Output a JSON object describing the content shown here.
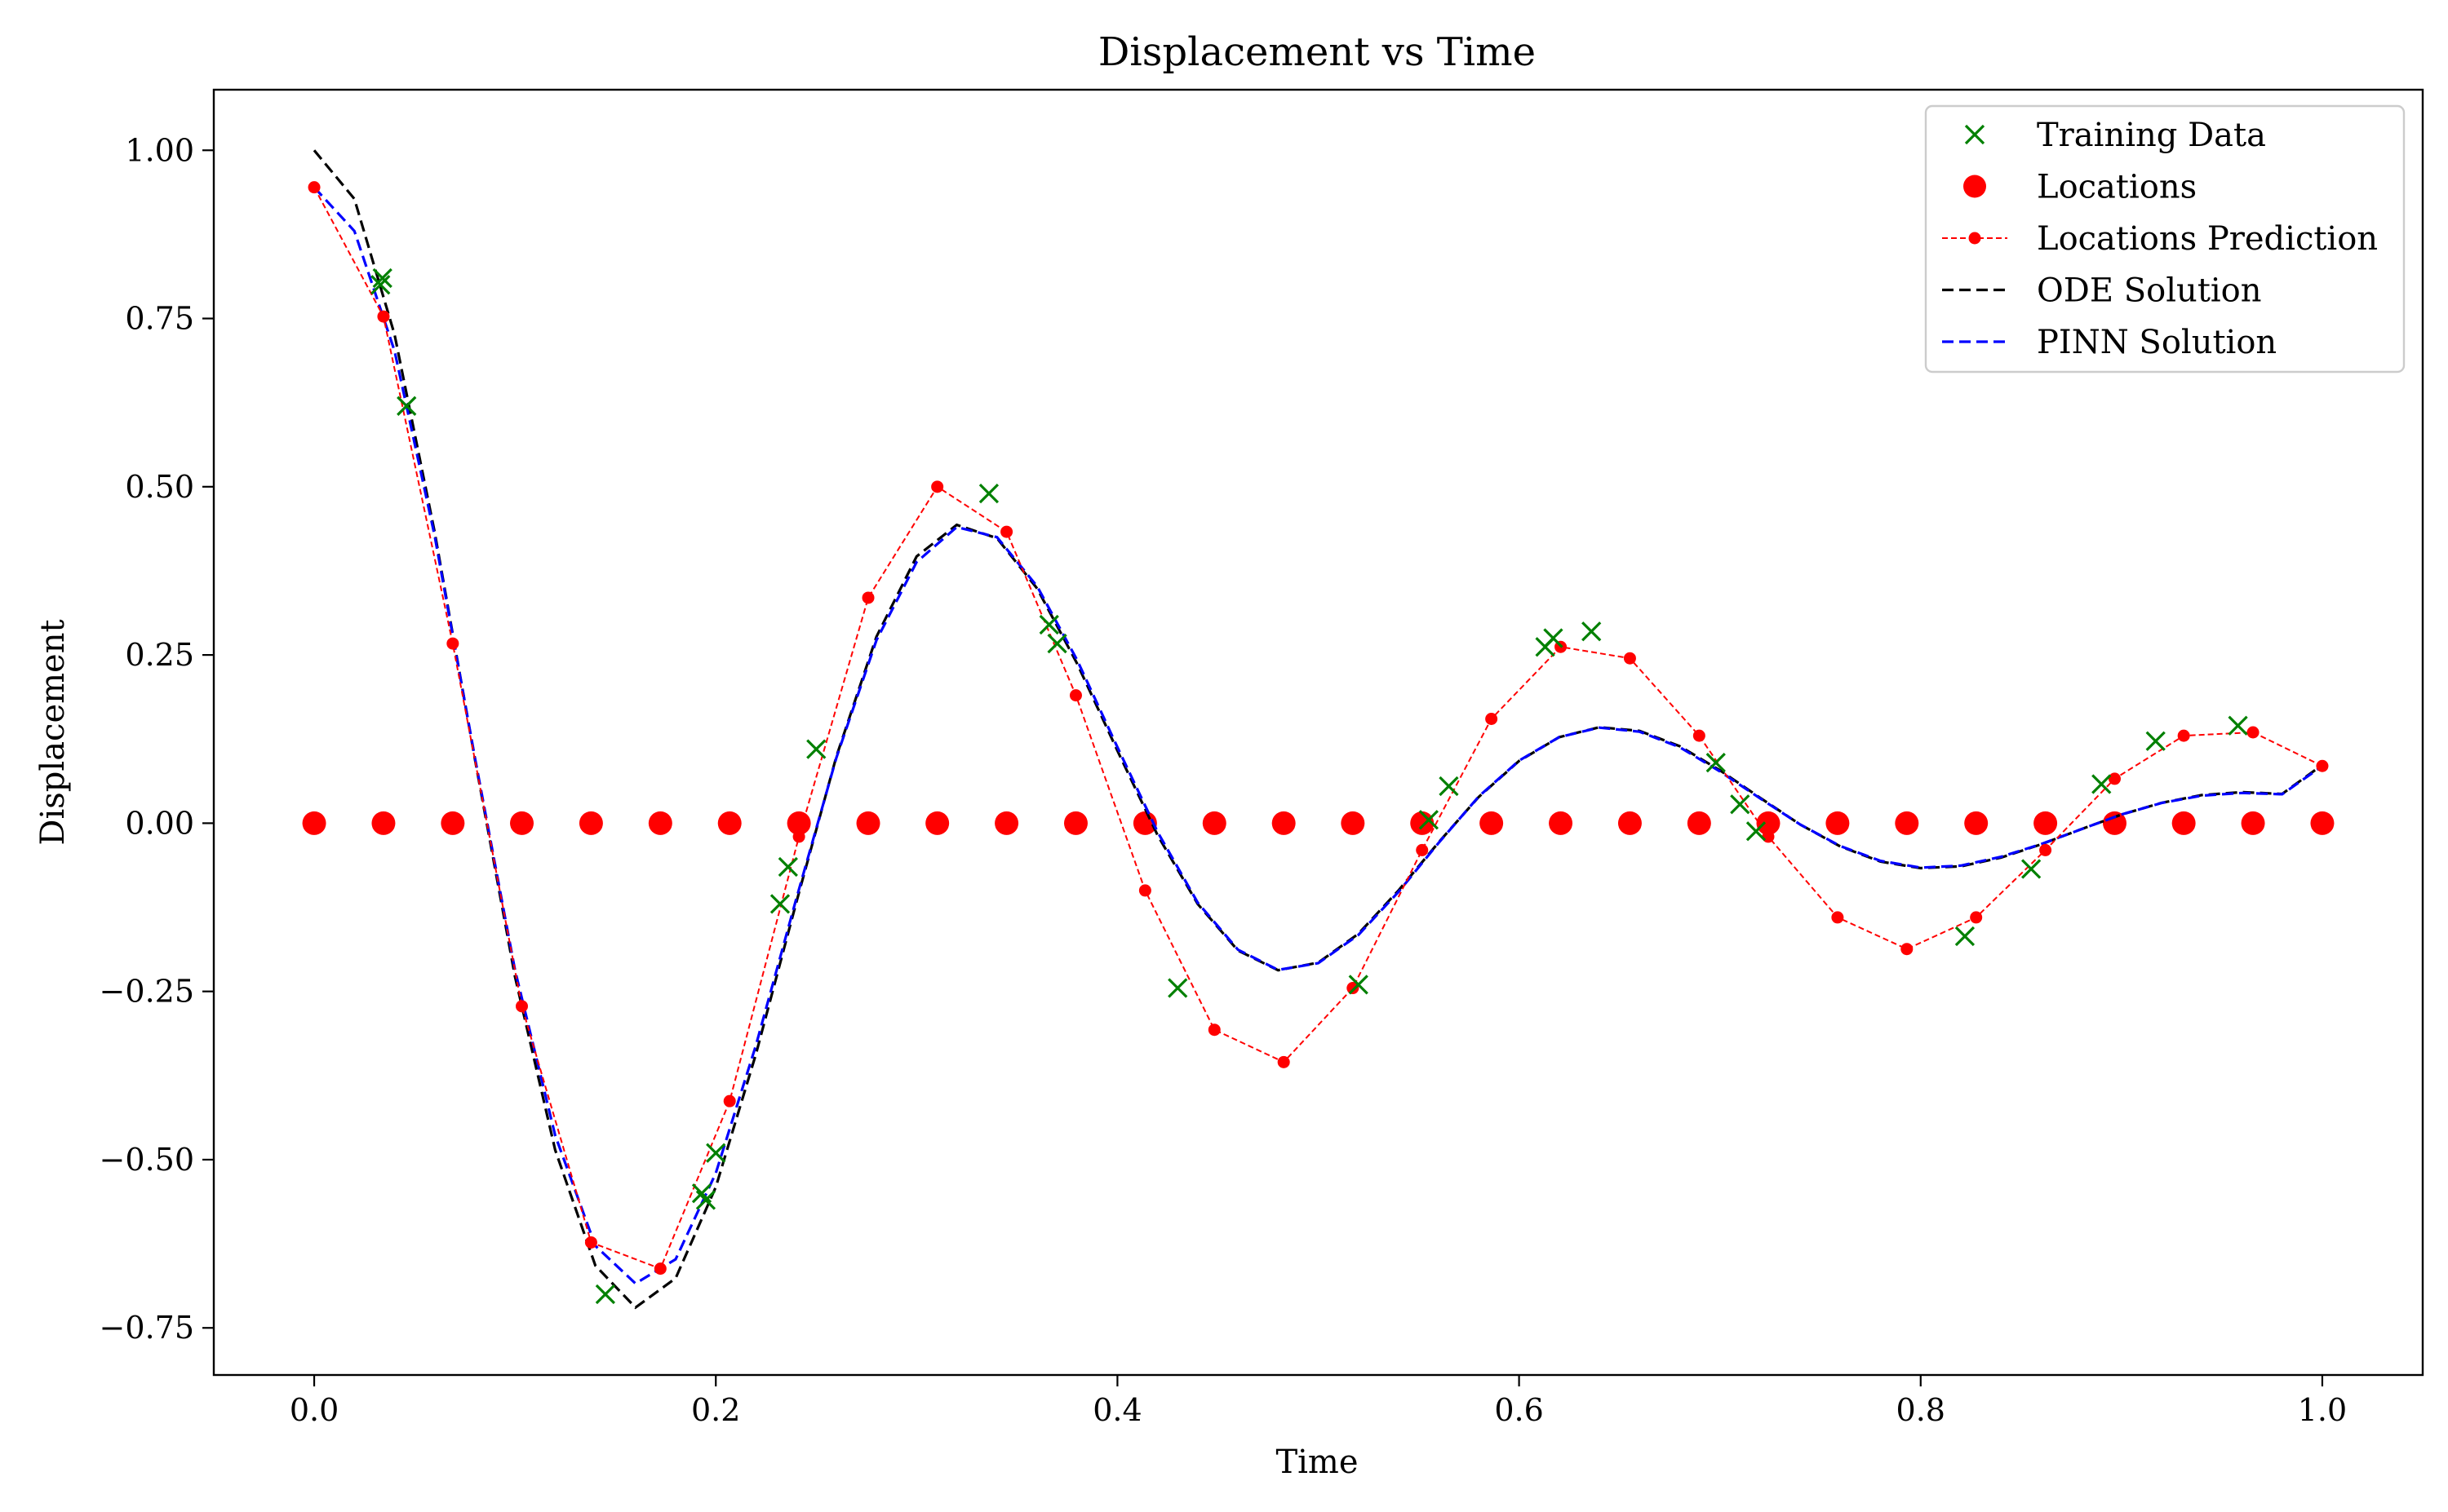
{
  "chart_data": {
    "type": "line",
    "title": "Displacement vs Time",
    "xlabel": "Time",
    "ylabel": "Displacement",
    "xlim": [
      -0.05,
      1.05
    ],
    "ylim": [
      -0.82,
      1.09
    ],
    "xticks": [
      0.0,
      0.2,
      0.4,
      0.6,
      0.8,
      1.0
    ],
    "xtick_labels": [
      "0.0",
      "0.2",
      "0.4",
      "0.6",
      "0.8",
      "1.0"
    ],
    "yticks": [
      -0.75,
      -0.5,
      -0.25,
      0.0,
      0.25,
      0.5,
      0.75,
      1.0
    ],
    "ytick_labels": [
      "−0.75",
      "−0.50",
      "−0.25",
      "0.00",
      "0.25",
      "0.50",
      "0.75",
      "1.00"
    ],
    "grid": false,
    "legend_position": "top-right",
    "series": [
      {
        "name": "ODE Solution",
        "kind": "line",
        "dash": "dashed",
        "color": "#000000",
        "x": [
          0.0,
          0.02,
          0.04,
          0.06,
          0.08,
          0.1,
          0.12,
          0.14,
          0.16,
          0.18,
          0.2,
          0.22,
          0.24,
          0.26,
          0.28,
          0.3,
          0.32,
          0.34,
          0.36,
          0.38,
          0.4,
          0.42,
          0.44,
          0.46,
          0.48,
          0.5,
          0.52,
          0.54,
          0.56,
          0.58,
          0.6,
          0.62,
          0.64,
          0.66,
          0.68,
          0.7,
          0.72,
          0.74,
          0.76,
          0.78,
          0.8,
          0.82,
          0.84,
          0.86,
          0.88,
          0.9,
          0.92,
          0.94,
          0.96,
          0.98,
          1.0
        ],
        "y": [
          1.0,
          0.9277,
          0.7263,
          0.4324,
          0.0959,
          -0.2279,
          -0.4858,
          -0.6574,
          -0.7198,
          -0.6762,
          -0.5408,
          -0.3431,
          -0.1184,
          0.0988,
          0.2772,
          0.3964,
          0.4433,
          0.4235,
          0.3488,
          0.2367,
          0.1077,
          -0.0178,
          -0.1201,
          -0.1892,
          -0.2185,
          -0.2072,
          -0.1643,
          -0.0999,
          -0.0282,
          0.0392,
          0.0925,
          0.1279,
          0.1426,
          0.1372,
          0.1144,
          0.0786,
          0.0378,
          -0.002,
          -0.0346,
          -0.0571,
          -0.0668,
          -0.0641,
          -0.0511,
          -0.0314,
          -0.0089,
          0.0128,
          0.0303,
          0.0418,
          0.0462,
          0.0435,
          0.0867
        ]
      },
      {
        "name": "PINN Solution",
        "kind": "line",
        "dash": "dashed",
        "color": "#0000ff",
        "x": [
          0.0,
          0.02,
          0.04,
          0.06,
          0.08,
          0.1,
          0.12,
          0.14,
          0.16,
          0.18,
          0.2,
          0.22,
          0.24,
          0.26,
          0.28,
          0.3,
          0.32,
          0.34,
          0.36,
          0.38,
          0.4,
          0.42,
          0.44,
          0.46,
          0.48,
          0.5,
          0.52,
          0.54,
          0.56,
          0.58,
          0.6,
          0.62,
          0.64,
          0.66,
          0.68,
          0.7,
          0.72,
          0.74,
          0.76,
          0.78,
          0.8,
          0.82,
          0.84,
          0.86,
          0.88,
          0.9,
          0.92,
          0.94,
          0.96,
          0.98,
          1.0
        ],
        "y": [
          0.945,
          0.88,
          0.702,
          0.427,
          0.098,
          -0.218,
          -0.464,
          -0.628,
          -0.684,
          -0.648,
          -0.52,
          -0.33,
          -0.113,
          0.097,
          0.272,
          0.388,
          0.44,
          0.425,
          0.352,
          0.242,
          0.113,
          -0.013,
          -0.118,
          -0.188,
          -0.218,
          -0.208,
          -0.166,
          -0.102,
          -0.029,
          0.04,
          0.093,
          0.128,
          0.142,
          0.136,
          0.113,
          0.077,
          0.037,
          -0.002,
          -0.034,
          -0.056,
          -0.066,
          -0.063,
          -0.05,
          -0.031,
          -0.009,
          0.013,
          0.03,
          0.041,
          0.045,
          0.043,
          0.085
        ]
      },
      {
        "name": "Locations Prediction",
        "kind": "line-markers",
        "dash": "dashed",
        "color": "#ff0000",
        "x": [
          0.0,
          0.0345,
          0.069,
          0.1034,
          0.1379,
          0.1724,
          0.2069,
          0.2414,
          0.2759,
          0.3103,
          0.3448,
          0.3793,
          0.4138,
          0.4483,
          0.4828,
          0.5172,
          0.5517,
          0.5862,
          0.6207,
          0.6552,
          0.6897,
          0.7241,
          0.7586,
          0.7931,
          0.8276,
          0.8621,
          0.8966,
          0.931,
          0.9655,
          1.0
        ],
        "y": [
          0.945,
          0.753,
          0.267,
          -0.272,
          -0.623,
          -0.662,
          -0.413,
          -0.02,
          0.335,
          0.5,
          0.433,
          0.19,
          -0.1,
          -0.307,
          -0.355,
          -0.245,
          -0.04,
          0.155,
          0.262,
          0.245,
          0.13,
          -0.02,
          -0.14,
          -0.187,
          -0.14,
          -0.04,
          0.066,
          0.13,
          0.135,
          0.085
        ]
      },
      {
        "name": "Locations",
        "kind": "markers",
        "marker": "circle",
        "color": "#ff0000",
        "x": [
          0.0,
          0.0345,
          0.069,
          0.1034,
          0.1379,
          0.1724,
          0.2069,
          0.2414,
          0.2759,
          0.3103,
          0.3448,
          0.3793,
          0.4138,
          0.4483,
          0.4828,
          0.5172,
          0.5517,
          0.5862,
          0.6207,
          0.6552,
          0.6897,
          0.7241,
          0.7586,
          0.7931,
          0.8276,
          0.8621,
          0.8966,
          0.931,
          0.9655,
          1.0
        ],
        "y": [
          0,
          0,
          0,
          0,
          0,
          0,
          0,
          0,
          0,
          0,
          0,
          0,
          0,
          0,
          0,
          0,
          0,
          0,
          0,
          0,
          0,
          0,
          0,
          0,
          0,
          0,
          0,
          0,
          0,
          0
        ]
      },
      {
        "name": "Training Data",
        "kind": "markers",
        "marker": "x",
        "color": "#008000",
        "x": [
          0.033,
          0.034,
          0.046,
          0.145,
          0.193,
          0.195,
          0.2,
          0.232,
          0.236,
          0.25,
          0.336,
          0.366,
          0.37,
          0.43,
          0.52,
          0.555,
          0.565,
          0.613,
          0.617,
          0.636,
          0.698,
          0.71,
          0.718,
          0.822,
          0.855,
          0.89,
          0.917,
          0.958
        ],
        "y": [
          0.8,
          0.81,
          0.62,
          -0.7,
          -0.55,
          -0.56,
          -0.49,
          -0.12,
          -0.065,
          0.11,
          0.49,
          0.295,
          0.267,
          -0.245,
          -0.24,
          0.005,
          0.055,
          0.262,
          0.275,
          0.285,
          0.09,
          0.028,
          -0.012,
          -0.168,
          -0.068,
          0.058,
          0.122,
          0.145
        ]
      }
    ],
    "legend_order": [
      "Training Data",
      "Locations",
      "Locations Prediction",
      "ODE Solution",
      "PINN Solution"
    ]
  }
}
